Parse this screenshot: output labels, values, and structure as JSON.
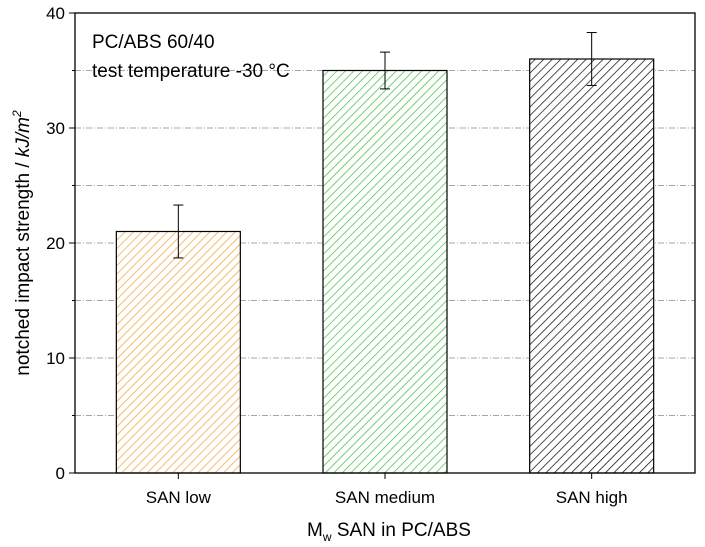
{
  "chart_data": {
    "type": "bar",
    "categories": [
      "SAN low",
      "SAN medium",
      "SAN high"
    ],
    "values": [
      21.0,
      35.0,
      36.0
    ],
    "errors_upper": [
      23.3,
      36.6,
      38.3
    ],
    "errors_lower": [
      18.7,
      33.4,
      33.7
    ],
    "bar_colors": [
      "#f0a030",
      "#40c040",
      "#000000"
    ],
    "bar_fill_style": "diagonal hatch",
    "ylabel_prefix": "notched impact strength / ",
    "ylabel_unit": "kJ/m",
    "ylabel_exp": "2",
    "xlabel_main": "M",
    "xlabel_sub": "w",
    "xlabel_rest": " SAN in PC/ABS",
    "annotation_line1": "PC/ABS 60/40",
    "annotation_line2": "test temperature -30 °C",
    "ylim": [
      0,
      40
    ],
    "yticks": [
      0,
      10,
      20,
      30,
      40
    ],
    "grid": "dash-dot horizontal major and minor",
    "legend": "none"
  }
}
